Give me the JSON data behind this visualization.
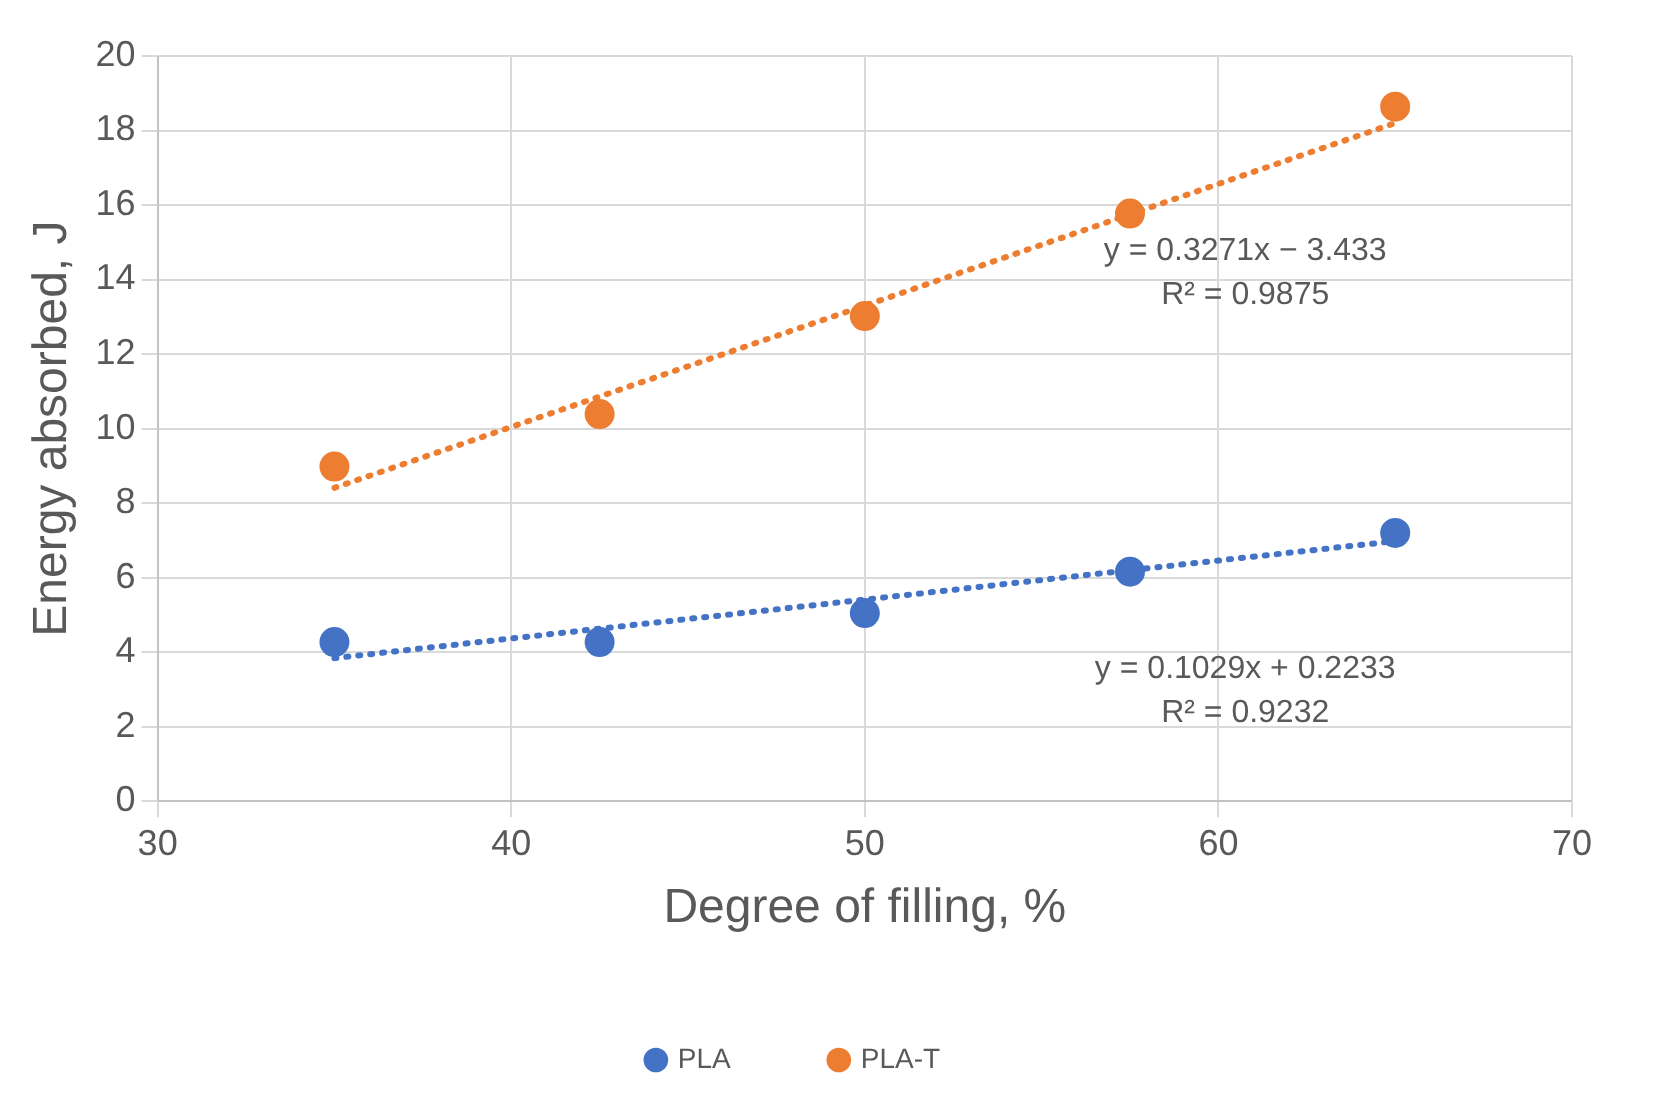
{
  "chart_data": {
    "type": "scatter",
    "xlabel": "Degree of filling, %",
    "ylabel": "Energy absorbed, J",
    "x": [
      35,
      42.5,
      50,
      57.5,
      65
    ],
    "series": [
      {
        "name": "PLA",
        "color": "#4472c4",
        "values": [
          4.27,
          4.27,
          5.05,
          6.16,
          7.2
        ]
      },
      {
        "name": "PLA-T",
        "color": "#ed7d31",
        "values": [
          8.98,
          10.39,
          13.02,
          15.77,
          18.64
        ]
      },
      {
        "type": "line",
        "color": "#4472c4",
        "values": [
          3.84,
          4.63,
          5.41,
          6.2,
          6.98
        ],
        "line_style": "dotted",
        "marker": "none"
      },
      {
        "type": "line",
        "color": "#ed7d31",
        "values": [
          8.41,
          10.86,
          13.3,
          15.75,
          18.2
        ],
        "line_style": "dotted",
        "marker": "none"
      }
    ],
    "annotations": [
      "y = 0.1029x + 0.2233\nR² = 0.9232",
      "y = 0.3271x − 3.433\nR² = 0.9875"
    ],
    "xlim": [
      30,
      70
    ],
    "xticks": [
      30,
      40,
      50,
      60,
      70
    ],
    "ylim": [
      0,
      20
    ],
    "yticks": [
      0,
      2,
      4,
      6,
      8,
      10,
      12,
      14,
      16,
      18,
      20
    ],
    "grid": true,
    "legend": "bottom",
    "marker": "circle"
  }
}
